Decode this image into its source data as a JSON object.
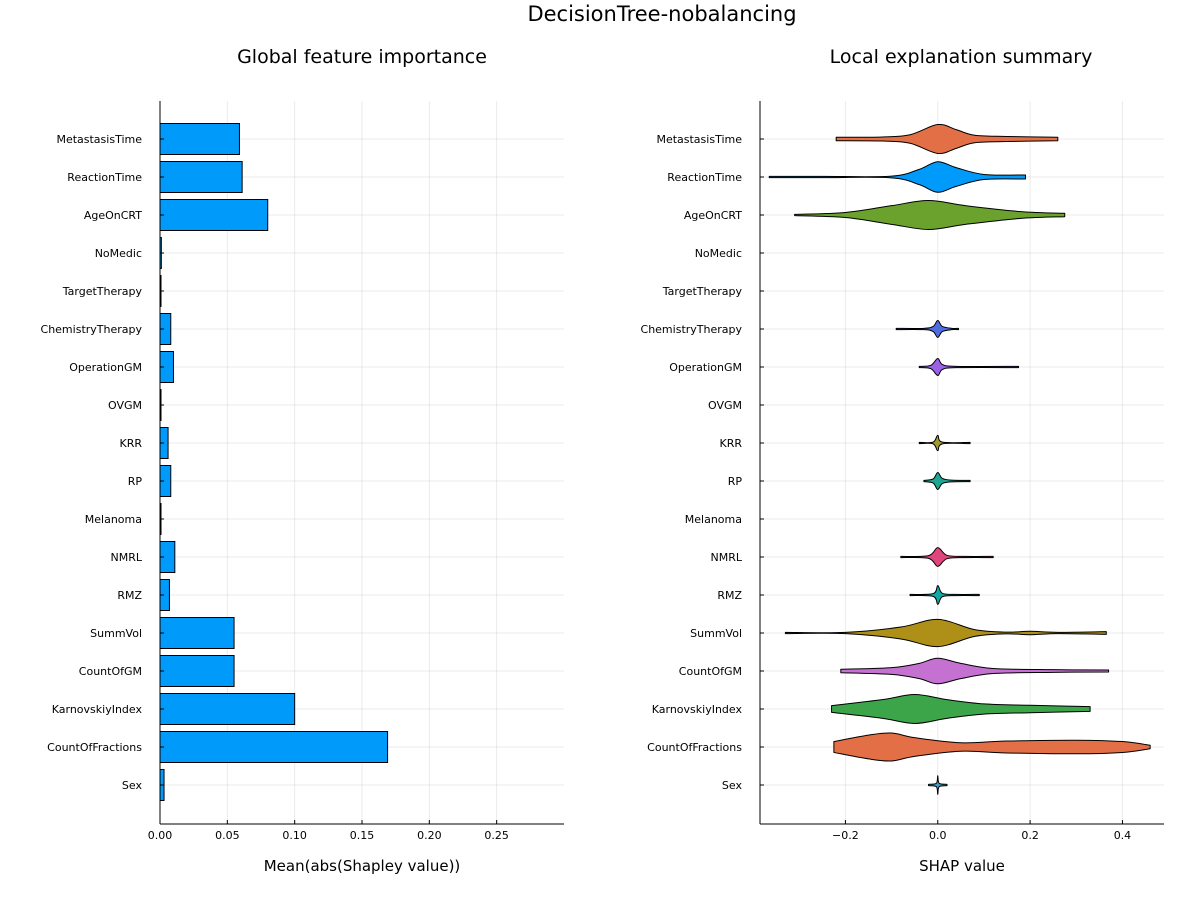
{
  "figure_title": "DecisionTree-nobalancing",
  "chart_data": [
    {
      "type": "bar",
      "orientation": "horizontal",
      "title": "Global feature importance",
      "xlabel": "Mean(abs(Shapley value))",
      "ylabel": "",
      "categories": [
        "MetastasisTime",
        "ReactionTime",
        "AgeOnCRT",
        "NoMedic",
        "TargetTherapy",
        "ChemistryTherapy",
        "OperationGM",
        "OVGM",
        "KRR",
        "RP",
        "Melanoma",
        "NMRL",
        "RMZ",
        "SummVol",
        "CountOfGM",
        "KarnovskiyIndex",
        "CountOfFractions",
        "Sex"
      ],
      "values": [
        0.059,
        0.061,
        0.08,
        0.001,
        0.0005,
        0.008,
        0.01,
        0.0003,
        0.006,
        0.008,
        0.0005,
        0.011,
        0.007,
        0.055,
        0.055,
        0.1,
        0.169,
        0.003
      ],
      "xlim": [
        0,
        0.3
      ],
      "xticks": [
        0.0,
        0.05,
        0.1,
        0.15,
        0.2,
        0.25
      ],
      "xtick_labels": [
        "0.00",
        "0.05",
        "0.10",
        "0.15",
        "0.20",
        "0.25"
      ],
      "grid": true,
      "bar_color": "#009AFA"
    },
    {
      "type": "violin",
      "orientation": "horizontal",
      "title": "Local explanation summary",
      "xlabel": "SHAP value",
      "ylabel": "",
      "categories": [
        "MetastasisTime",
        "ReactionTime",
        "AgeOnCRT",
        "NoMedic",
        "TargetTherapy",
        "ChemistryTherapy",
        "OperationGM",
        "OVGM",
        "KRR",
        "RP",
        "Melanoma",
        "NMRL",
        "RMZ",
        "SummVol",
        "CountOfGM",
        "KarnovskiyIndex",
        "CountOfFractions",
        "Sex"
      ],
      "xlim": [
        -0.385,
        0.49
      ],
      "xticks": [
        -0.2,
        0.0,
        0.2,
        0.4
      ],
      "xtick_labels": [
        "−0.2",
        "0.0",
        "0.2",
        "0.4"
      ],
      "grid": true,
      "series": [
        {
          "min": -0.22,
          "max": 0.26,
          "color": "#E26F46",
          "profile": [
            [
              -0.22,
              0.1
            ],
            [
              -0.12,
              0.12
            ],
            [
              -0.06,
              0.25
            ],
            [
              0.0,
              0.85
            ],
            [
              0.04,
              0.55
            ],
            [
              0.08,
              0.22
            ],
            [
              0.15,
              0.15
            ],
            [
              0.26,
              0.1
            ]
          ]
        },
        {
          "min": -0.365,
          "max": 0.19,
          "color": "#009AFA",
          "profile": [
            [
              -0.365,
              0.02
            ],
            [
              -0.25,
              0.02
            ],
            [
              -0.1,
              0.05
            ],
            [
              -0.04,
              0.45
            ],
            [
              0.0,
              0.9
            ],
            [
              0.04,
              0.55
            ],
            [
              0.1,
              0.15
            ],
            [
              0.19,
              0.12
            ]
          ]
        },
        {
          "min": -0.31,
          "max": 0.275,
          "color": "#6AA22D",
          "profile": [
            [
              -0.31,
              0.04
            ],
            [
              -0.2,
              0.15
            ],
            [
              -0.1,
              0.55
            ],
            [
              -0.02,
              0.85
            ],
            [
              0.06,
              0.55
            ],
            [
              0.18,
              0.2
            ],
            [
              0.275,
              0.1
            ]
          ]
        },
        {
          "min": 0.0,
          "max": 0.0,
          "color": "#000000",
          "profile": []
        },
        {
          "min": 0.0,
          "max": 0.0,
          "color": "#000000",
          "profile": []
        },
        {
          "min": -0.09,
          "max": 0.045,
          "color": "#4E6DE0",
          "profile": [
            [
              -0.09,
              0.02
            ],
            [
              -0.03,
              0.04
            ],
            [
              -0.01,
              0.15
            ],
            [
              0.0,
              0.5
            ],
            [
              0.01,
              0.15
            ],
            [
              0.03,
              0.04
            ],
            [
              0.045,
              0.02
            ]
          ]
        },
        {
          "min": -0.04,
          "max": 0.175,
          "color": "#9B62E8",
          "profile": [
            [
              -0.04,
              0.03
            ],
            [
              -0.015,
              0.1
            ],
            [
              0.0,
              0.5
            ],
            [
              0.01,
              0.15
            ],
            [
              0.04,
              0.04
            ],
            [
              0.175,
              0.02
            ]
          ]
        },
        {
          "min": 0.0,
          "max": 0.0,
          "color": "#000000",
          "profile": []
        },
        {
          "min": -0.04,
          "max": 0.07,
          "color": "#A09A35",
          "profile": [
            [
              -0.04,
              0.02
            ],
            [
              -0.01,
              0.05
            ],
            [
              0.0,
              0.45
            ],
            [
              0.01,
              0.05
            ],
            [
              0.07,
              0.02
            ]
          ]
        },
        {
          "min": -0.03,
          "max": 0.07,
          "color": "#1CA693",
          "profile": [
            [
              -0.03,
              0.03
            ],
            [
              -0.01,
              0.12
            ],
            [
              0.0,
              0.5
            ],
            [
              0.01,
              0.15
            ],
            [
              0.03,
              0.05
            ],
            [
              0.07,
              0.02
            ]
          ]
        },
        {
          "min": 0.0,
          "max": 0.0,
          "color": "#000000",
          "profile": []
        },
        {
          "min": -0.08,
          "max": 0.12,
          "color": "#E0467E",
          "profile": [
            [
              -0.08,
              0.02
            ],
            [
              -0.02,
              0.08
            ],
            [
              0.0,
              0.55
            ],
            [
              0.02,
              0.1
            ],
            [
              0.06,
              0.03
            ],
            [
              0.12,
              0.02
            ]
          ]
        },
        {
          "min": -0.06,
          "max": 0.09,
          "color": "#12A8A4",
          "profile": [
            [
              -0.06,
              0.02
            ],
            [
              -0.01,
              0.08
            ],
            [
              0.0,
              0.55
            ],
            [
              0.01,
              0.1
            ],
            [
              0.04,
              0.03
            ],
            [
              0.09,
              0.02
            ]
          ]
        },
        {
          "min": -0.33,
          "max": 0.365,
          "color": "#AE8F18",
          "profile": [
            [
              -0.33,
              0.02
            ],
            [
              -0.2,
              0.03
            ],
            [
              -0.08,
              0.35
            ],
            [
              0.0,
              0.8
            ],
            [
              0.08,
              0.2
            ],
            [
              0.15,
              0.05
            ],
            [
              0.2,
              0.1
            ],
            [
              0.26,
              0.04
            ],
            [
              0.365,
              0.08
            ]
          ]
        },
        {
          "min": -0.21,
          "max": 0.37,
          "color": "#C571D2",
          "profile": [
            [
              -0.21,
              0.1
            ],
            [
              -0.1,
              0.2
            ],
            [
              -0.04,
              0.45
            ],
            [
              0.0,
              0.75
            ],
            [
              0.05,
              0.45
            ],
            [
              0.12,
              0.15
            ],
            [
              0.25,
              0.08
            ],
            [
              0.37,
              0.06
            ]
          ]
        },
        {
          "min": -0.23,
          "max": 0.33,
          "color": "#3CA449",
          "profile": [
            [
              -0.23,
              0.2
            ],
            [
              -0.12,
              0.55
            ],
            [
              -0.05,
              0.85
            ],
            [
              0.02,
              0.55
            ],
            [
              0.1,
              0.3
            ],
            [
              0.2,
              0.22
            ],
            [
              0.33,
              0.14
            ]
          ]
        },
        {
          "min": -0.225,
          "max": 0.46,
          "color": "#E26F46",
          "profile": [
            [
              -0.225,
              0.32
            ],
            [
              -0.15,
              0.7
            ],
            [
              -0.1,
              0.82
            ],
            [
              -0.05,
              0.55
            ],
            [
              0.05,
              0.25
            ],
            [
              0.15,
              0.35
            ],
            [
              0.3,
              0.4
            ],
            [
              0.4,
              0.32
            ],
            [
              0.46,
              0.1
            ]
          ]
        },
        {
          "min": -0.02,
          "max": 0.02,
          "color": "#3D9CC8",
          "profile": [
            [
              -0.02,
              0.04
            ],
            [
              -0.003,
              0.1
            ],
            [
              0.0,
              0.55
            ],
            [
              0.003,
              0.1
            ],
            [
              0.02,
              0.04
            ]
          ]
        }
      ]
    }
  ]
}
